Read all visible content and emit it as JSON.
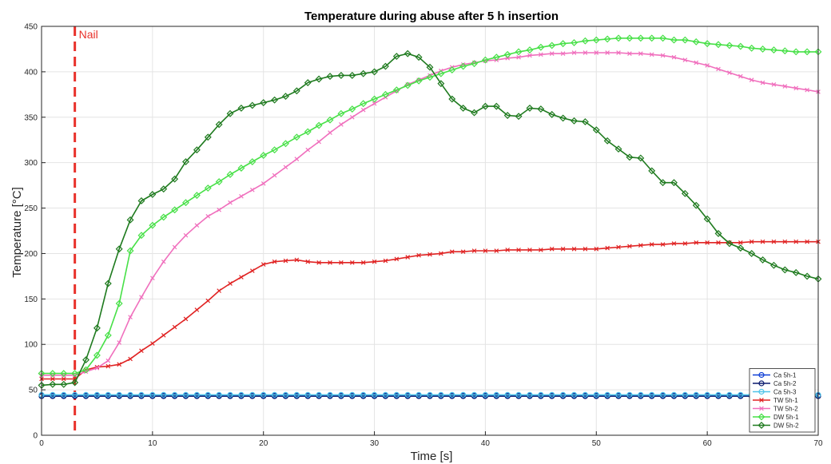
{
  "chart_data": {
    "type": "line",
    "title": "Temperature during abuse after 5 h insertion",
    "xlabel": "Time [s]",
    "ylabel": "Temperature [°C]",
    "xlim": [
      0,
      70
    ],
    "ylim": [
      0,
      450
    ],
    "xticks": [
      0,
      10,
      20,
      30,
      40,
      50,
      60,
      70
    ],
    "yticks": [
      0,
      50,
      100,
      150,
      200,
      250,
      300,
      350,
      400,
      450
    ],
    "grid": true,
    "legend_position": "bottom-right",
    "annotations": [
      {
        "text": "Nail",
        "x": 3,
        "style": "vertical dashed line",
        "color": "#e8312a"
      }
    ],
    "series": [
      {
        "name": "Ca 5h-1",
        "color": "#0f3fd6",
        "marker": "circle",
        "x": [
          0,
          1,
          2,
          3,
          4,
          5,
          6,
          7,
          8,
          9,
          10,
          11,
          12,
          13,
          14,
          15,
          16,
          17,
          18,
          19,
          20,
          21,
          22,
          23,
          24,
          25,
          26,
          27,
          28,
          29,
          30,
          31,
          32,
          33,
          34,
          35,
          36,
          37,
          38,
          39,
          40,
          41,
          42,
          43,
          44,
          45,
          46,
          47,
          48,
          49,
          50,
          51,
          52,
          53,
          54,
          55,
          56,
          57,
          58,
          59,
          60,
          61,
          62,
          63,
          64,
          65,
          66,
          67,
          68,
          69,
          70
        ],
        "y": [
          44,
          44,
          44,
          44,
          44,
          44,
          44,
          44,
          44,
          44,
          44,
          44,
          44,
          44,
          44,
          44,
          44,
          44,
          44,
          44,
          44,
          44,
          44,
          44,
          44,
          44,
          44,
          44,
          44,
          44,
          44,
          44,
          44,
          44,
          44,
          44,
          44,
          44,
          44,
          44,
          44,
          44,
          44,
          44,
          44,
          44,
          44,
          44,
          44,
          44,
          44,
          44,
          44,
          44,
          44,
          44,
          44,
          44,
          44,
          44,
          44,
          44,
          44,
          44,
          44,
          44,
          44,
          44,
          44,
          44,
          44
        ]
      },
      {
        "name": "Ca 5h-2",
        "color": "#0a1a6e",
        "marker": "circle",
        "x": [
          0,
          1,
          2,
          3,
          4,
          5,
          6,
          7,
          8,
          9,
          10,
          11,
          12,
          13,
          14,
          15,
          16,
          17,
          18,
          19,
          20,
          21,
          22,
          23,
          24,
          25,
          26,
          27,
          28,
          29,
          30,
          31,
          32,
          33,
          34,
          35,
          36,
          37,
          38,
          39,
          40,
          41,
          42,
          43,
          44,
          45,
          46,
          47,
          48,
          49,
          50,
          51,
          52,
          53,
          54,
          55,
          56,
          57,
          58,
          59,
          60,
          61,
          62,
          63,
          64,
          65,
          66,
          67,
          68,
          69,
          70
        ],
        "y": [
          43,
          43,
          43,
          43,
          43,
          43,
          43,
          43,
          43,
          43,
          43,
          43,
          43,
          43,
          43,
          43,
          43,
          43,
          43,
          43,
          43,
          43,
          43,
          43,
          43,
          43,
          43,
          43,
          43,
          43,
          43,
          43,
          43,
          43,
          43,
          43,
          43,
          43,
          43,
          43,
          43,
          43,
          43,
          43,
          43,
          43,
          43,
          43,
          43,
          43,
          43,
          43,
          43,
          43,
          43,
          43,
          43,
          43,
          43,
          43,
          43,
          43,
          43,
          43,
          43,
          43,
          43,
          43,
          43,
          43,
          43
        ]
      },
      {
        "name": "Ca 5h-3",
        "color": "#4fc3e8",
        "marker": "circle",
        "x": [
          0,
          1,
          2,
          3,
          4,
          5,
          6,
          7,
          8,
          9,
          10,
          11,
          12,
          13,
          14,
          15,
          16,
          17,
          18,
          19,
          20,
          21,
          22,
          23,
          24,
          25,
          26,
          27,
          28,
          29,
          30,
          31,
          32,
          33,
          34,
          35,
          36,
          37,
          38,
          39,
          40,
          41,
          42,
          43,
          44,
          45,
          46,
          47,
          48,
          49,
          50,
          51,
          52,
          53,
          54,
          55,
          56,
          57,
          58,
          59,
          60,
          61,
          62,
          63,
          64,
          65,
          66,
          67,
          68,
          69,
          70
        ],
        "y": [
          44.5,
          44.5,
          44.5,
          44.5,
          44.5,
          44.5,
          44.5,
          44.5,
          44.5,
          44.5,
          44.5,
          44.5,
          44.5,
          44.5,
          44.5,
          44.5,
          44.5,
          44.5,
          44.5,
          44.5,
          44.5,
          44.5,
          44.5,
          44.5,
          44.5,
          44.5,
          44.5,
          44.5,
          44.5,
          44.5,
          44.5,
          44.5,
          44.5,
          44.5,
          44.5,
          44.5,
          44.5,
          44.5,
          44.5,
          44.5,
          44.5,
          44.5,
          44.5,
          44.5,
          44.5,
          44.5,
          44.5,
          44.5,
          44.5,
          44.5,
          44.5,
          44.5,
          44.5,
          44.5,
          44.5,
          44.5,
          44.5,
          44.5,
          44.5,
          44.5,
          44.5,
          44.5,
          44.5,
          44.5,
          44.5,
          44.5,
          44.5,
          44.5,
          44.5,
          44.5,
          44.5
        ]
      },
      {
        "name": "TW 5h-1",
        "color": "#e02222",
        "marker": "x",
        "x": [
          0,
          1,
          2,
          3,
          4,
          5,
          6,
          7,
          8,
          9,
          10,
          11,
          12,
          13,
          14,
          15,
          16,
          17,
          18,
          19,
          20,
          21,
          22,
          23,
          24,
          25,
          26,
          27,
          28,
          29,
          30,
          31,
          32,
          33,
          34,
          35,
          36,
          37,
          38,
          39,
          40,
          41,
          42,
          43,
          44,
          45,
          46,
          47,
          48,
          49,
          50,
          51,
          52,
          53,
          54,
          55,
          56,
          57,
          58,
          59,
          60,
          61,
          62,
          63,
          64,
          65,
          66,
          67,
          68,
          69,
          70
        ],
        "y": [
          62,
          62,
          62,
          62,
          72,
          75,
          76,
          78,
          84,
          93,
          101,
          110,
          119,
          128,
          138,
          148,
          159,
          167,
          174,
          181,
          188,
          191,
          192,
          193,
          191,
          190,
          190,
          190,
          190,
          190,
          191,
          192,
          194,
          196,
          198,
          199,
          200,
          202,
          202,
          203,
          203,
          203,
          204,
          204,
          204,
          204,
          205,
          205,
          205,
          205,
          205,
          206,
          207,
          208,
          209,
          210,
          210,
          211,
          211,
          212,
          212,
          212,
          212,
          212,
          213,
          213,
          213,
          213,
          213,
          213,
          213
        ]
      },
      {
        "name": "TW 5h-2",
        "color": "#f06fbd",
        "marker": "x",
        "x": [
          0,
          1,
          2,
          3,
          4,
          5,
          6,
          7,
          8,
          9,
          10,
          11,
          12,
          13,
          14,
          15,
          16,
          17,
          18,
          19,
          20,
          21,
          22,
          23,
          24,
          25,
          26,
          27,
          28,
          29,
          30,
          31,
          32,
          33,
          34,
          35,
          36,
          37,
          38,
          39,
          40,
          41,
          42,
          43,
          44,
          45,
          46,
          47,
          48,
          49,
          50,
          51,
          52,
          53,
          54,
          55,
          56,
          57,
          58,
          59,
          60,
          61,
          62,
          63,
          64,
          65,
          66,
          67,
          68,
          69,
          70
        ],
        "y": [
          66,
          66,
          66,
          66,
          70,
          74,
          82,
          102,
          130,
          152,
          173,
          191,
          207,
          220,
          231,
          241,
          248,
          256,
          263,
          270,
          277,
          286,
          295,
          304,
          314,
          323,
          333,
          342,
          350,
          358,
          365,
          372,
          379,
          386,
          391,
          396,
          401,
          405,
          408,
          410,
          412,
          413,
          415,
          416,
          418,
          419,
          420,
          420,
          421,
          421,
          421,
          421,
          421,
          420,
          420,
          419,
          418,
          416,
          413,
          410,
          407,
          403,
          399,
          395,
          391,
          388,
          386,
          384,
          382,
          380,
          378
        ]
      },
      {
        "name": "DW 5h-1",
        "color": "#47e047",
        "marker": "diamond",
        "x": [
          0,
          1,
          2,
          3,
          4,
          5,
          6,
          7,
          8,
          9,
          10,
          11,
          12,
          13,
          14,
          15,
          16,
          17,
          18,
          19,
          20,
          21,
          22,
          23,
          24,
          25,
          26,
          27,
          28,
          29,
          30,
          31,
          32,
          33,
          34,
          35,
          36,
          37,
          38,
          39,
          40,
          41,
          42,
          43,
          44,
          45,
          46,
          47,
          48,
          49,
          50,
          51,
          52,
          53,
          54,
          55,
          56,
          57,
          58,
          59,
          60,
          61,
          62,
          63,
          64,
          65,
          66,
          67,
          68,
          69,
          70
        ],
        "y": [
          68,
          68,
          68,
          68,
          72,
          88,
          110,
          145,
          203,
          220,
          231,
          240,
          248,
          256,
          264,
          272,
          279,
          287,
          294,
          301,
          308,
          314,
          321,
          328,
          334,
          341,
          347,
          354,
          359,
          365,
          370,
          375,
          380,
          385,
          390,
          394,
          398,
          402,
          406,
          409,
          413,
          416,
          419,
          422,
          424,
          427,
          429,
          431,
          432,
          434,
          435,
          436,
          437,
          437,
          437,
          437,
          437,
          435,
          435,
          433,
          431,
          430,
          429,
          428,
          426,
          425,
          424,
          423,
          422,
          422,
          422
        ]
      },
      {
        "name": "DW 5h-2",
        "color": "#1e7a1e",
        "marker": "diamond",
        "x": [
          0,
          1,
          2,
          3,
          4,
          5,
          6,
          7,
          8,
          9,
          10,
          11,
          12,
          13,
          14,
          15,
          16,
          17,
          18,
          19,
          20,
          21,
          22,
          23,
          24,
          25,
          26,
          27,
          28,
          29,
          30,
          31,
          32,
          33,
          34,
          35,
          36,
          37,
          38,
          39,
          40,
          41,
          42,
          43,
          44,
          45,
          46,
          47,
          48,
          49,
          50,
          51,
          52,
          53,
          54,
          55,
          56,
          57,
          58,
          59,
          60,
          61,
          62,
          63,
          64,
          65,
          66,
          67,
          68,
          69,
          70
        ],
        "y": [
          55,
          56,
          56,
          58,
          83,
          118,
          167,
          205,
          237,
          258,
          265,
          271,
          282,
          301,
          314,
          328,
          342,
          354,
          360,
          363,
          366,
          369,
          373,
          379,
          388,
          392,
          395,
          396,
          396,
          398,
          400,
          406,
          417,
          420,
          416,
          405,
          387,
          370,
          360,
          355,
          362,
          362,
          352,
          351,
          360,
          359,
          353,
          349,
          346,
          345,
          336,
          324,
          315,
          306,
          305,
          291,
          278,
          278,
          266,
          253,
          238,
          222,
          211,
          206,
          200,
          193,
          187,
          182,
          179,
          175,
          172
        ]
      }
    ]
  }
}
